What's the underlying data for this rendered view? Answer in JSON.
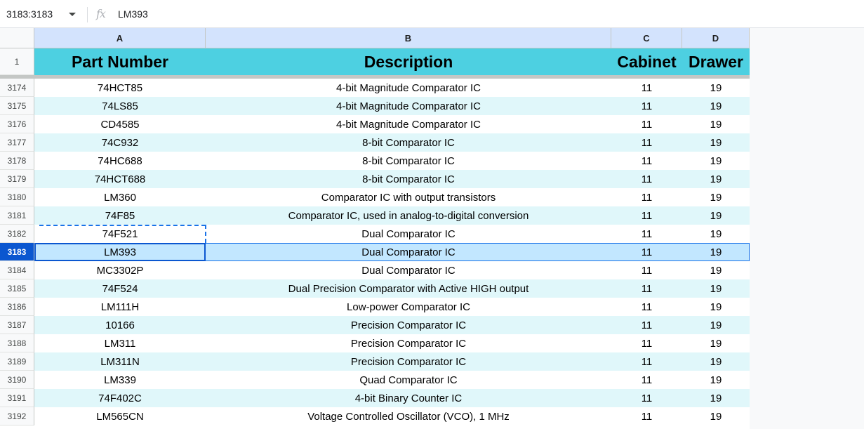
{
  "formula_bar": {
    "name_box": "3183:3183",
    "fx_label": "fx",
    "value": "LM393"
  },
  "columns": [
    "A",
    "B",
    "C",
    "D"
  ],
  "header": {
    "row_number": "1",
    "cells": [
      "Part Number",
      "Description",
      "Cabinet",
      "Drawer"
    ],
    "background": "#4dd0e1"
  },
  "selected_row": "3183",
  "rows": [
    {
      "num": "3174",
      "cells": [
        "74HCT85",
        "4-bit Magnitude Comparator IC",
        "11",
        "19"
      ]
    },
    {
      "num": "3175",
      "cells": [
        "74LS85",
        "4-bit Magnitude Comparator IC",
        "11",
        "19"
      ]
    },
    {
      "num": "3176",
      "cells": [
        "CD4585",
        "4-bit Magnitude Comparator IC",
        "11",
        "19"
      ]
    },
    {
      "num": "3177",
      "cells": [
        "74C932",
        "8-bit Comparator IC",
        "11",
        "19"
      ]
    },
    {
      "num": "3178",
      "cells": [
        "74HC688",
        "8-bit Comparator IC",
        "11",
        "19"
      ]
    },
    {
      "num": "3179",
      "cells": [
        "74HCT688",
        "8-bit Comparator IC",
        "11",
        "19"
      ]
    },
    {
      "num": "3180",
      "cells": [
        "LM360",
        "Comparator IC with output transistors",
        "11",
        "19"
      ]
    },
    {
      "num": "3181",
      "cells": [
        "74F85",
        "Comparator IC, used in analog-to-digital conversion",
        "11",
        "19"
      ]
    },
    {
      "num": "3182",
      "cells": [
        "74F521",
        "Dual Comparator IC",
        "11",
        "19"
      ]
    },
    {
      "num": "3183",
      "cells": [
        "LM393",
        "Dual Comparator IC",
        "11",
        "19"
      ]
    },
    {
      "num": "3184",
      "cells": [
        "MC3302P",
        "Dual Comparator IC",
        "11",
        "19"
      ]
    },
    {
      "num": "3185",
      "cells": [
        "74F524",
        "Dual Precision Comparator with Active HIGH output",
        "11",
        "19"
      ]
    },
    {
      "num": "3186",
      "cells": [
        "LM111H",
        "Low-power Comparator IC",
        "11",
        "19"
      ]
    },
    {
      "num": "3187",
      "cells": [
        "10166",
        "Precision Comparator IC",
        "11",
        "19"
      ]
    },
    {
      "num": "3188",
      "cells": [
        "LM311",
        "Precision Comparator IC",
        "11",
        "19"
      ]
    },
    {
      "num": "3189",
      "cells": [
        "LM311N",
        "Precision Comparator IC",
        "11",
        "19"
      ]
    },
    {
      "num": "3190",
      "cells": [
        "LM339",
        "Quad Comparator IC",
        "11",
        "19"
      ]
    },
    {
      "num": "3191",
      "cells": [
        "74F402C",
        "4-bit Binary Counter IC",
        "11",
        "19"
      ]
    },
    {
      "num": "3192",
      "cells": [
        "LM565CN",
        "Voltage Controlled Oscillator (VCO), 1 MHz",
        "11",
        "19"
      ]
    }
  ],
  "colors": {
    "row_alt": "#e0f7fa",
    "selection": "#c2e7ff",
    "accent": "#0b57d0"
  }
}
